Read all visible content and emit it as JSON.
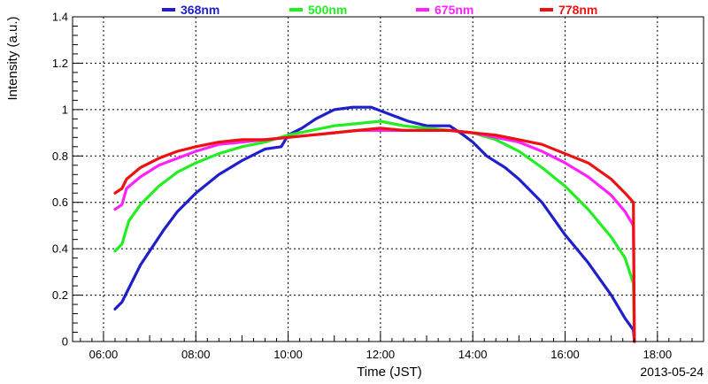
{
  "chart_data": {
    "type": "line",
    "xlabel": "Time (JST)",
    "ylabel": "Intensity (a.u.)",
    "date_label": "2013-05-24",
    "xlim": [
      5.33,
      19.0
    ],
    "ylim": [
      0,
      1.4
    ],
    "x_ticks": [
      {
        "value": 6,
        "label": "06:00"
      },
      {
        "value": 8,
        "label": "08:00"
      },
      {
        "value": 10,
        "label": "10:00"
      },
      {
        "value": 12,
        "label": "12:00"
      },
      {
        "value": 14,
        "label": "14:00"
      },
      {
        "value": 16,
        "label": "16:00"
      },
      {
        "value": 18,
        "label": "18:00"
      }
    ],
    "y_ticks": [
      {
        "value": 0,
        "label": "0"
      },
      {
        "value": 0.2,
        "label": "0.2"
      },
      {
        "value": 0.4,
        "label": "0.4"
      },
      {
        "value": 0.6,
        "label": "0.6"
      },
      {
        "value": 0.8,
        "label": "0.8"
      },
      {
        "value": 1.0,
        "label": "1"
      },
      {
        "value": 1.2,
        "label": "1.2"
      },
      {
        "value": 1.4,
        "label": "1.4"
      }
    ],
    "grid": true,
    "legend_position": "top",
    "series": [
      {
        "name": "368nm",
        "color": "#1f1fcc",
        "points": [
          [
            6.25,
            0.14
          ],
          [
            6.4,
            0.17
          ],
          [
            6.6,
            0.25
          ],
          [
            6.8,
            0.33
          ],
          [
            7.0,
            0.39
          ],
          [
            7.3,
            0.48
          ],
          [
            7.6,
            0.56
          ],
          [
            8.0,
            0.64
          ],
          [
            8.5,
            0.72
          ],
          [
            9.0,
            0.78
          ],
          [
            9.5,
            0.83
          ],
          [
            9.85,
            0.84
          ],
          [
            10.0,
            0.89
          ],
          [
            10.3,
            0.92
          ],
          [
            10.6,
            0.96
          ],
          [
            11.0,
            1.0
          ],
          [
            11.4,
            1.01
          ],
          [
            11.8,
            1.01
          ],
          [
            12.2,
            0.98
          ],
          [
            12.6,
            0.95
          ],
          [
            13.0,
            0.93
          ],
          [
            13.5,
            0.93
          ],
          [
            13.8,
            0.89
          ],
          [
            14.0,
            0.86
          ],
          [
            14.3,
            0.8
          ],
          [
            14.7,
            0.75
          ],
          [
            15.0,
            0.7
          ],
          [
            15.5,
            0.6
          ],
          [
            16.0,
            0.46
          ],
          [
            16.5,
            0.34
          ],
          [
            17.0,
            0.2
          ],
          [
            17.3,
            0.1
          ],
          [
            17.48,
            0.05
          ],
          [
            17.5,
            0.0
          ]
        ]
      },
      {
        "name": "500nm",
        "color": "#22ee22",
        "points": [
          [
            6.25,
            0.39
          ],
          [
            6.4,
            0.42
          ],
          [
            6.55,
            0.52
          ],
          [
            6.8,
            0.59
          ],
          [
            7.2,
            0.67
          ],
          [
            7.6,
            0.73
          ],
          [
            8.0,
            0.77
          ],
          [
            8.5,
            0.81
          ],
          [
            9.0,
            0.84
          ],
          [
            9.5,
            0.86
          ],
          [
            10.0,
            0.89
          ],
          [
            10.5,
            0.91
          ],
          [
            11.0,
            0.93
          ],
          [
            11.5,
            0.94
          ],
          [
            12.0,
            0.95
          ],
          [
            12.5,
            0.93
          ],
          [
            13.0,
            0.92
          ],
          [
            13.5,
            0.91
          ],
          [
            14.0,
            0.9
          ],
          [
            14.5,
            0.87
          ],
          [
            15.0,
            0.82
          ],
          [
            15.5,
            0.75
          ],
          [
            16.0,
            0.67
          ],
          [
            16.5,
            0.57
          ],
          [
            17.0,
            0.45
          ],
          [
            17.3,
            0.36
          ],
          [
            17.48,
            0.25
          ],
          [
            17.5,
            0.0
          ]
        ]
      },
      {
        "name": "675nm",
        "color": "#ff22ff",
        "points": [
          [
            6.25,
            0.57
          ],
          [
            6.4,
            0.59
          ],
          [
            6.5,
            0.66
          ],
          [
            6.8,
            0.71
          ],
          [
            7.2,
            0.76
          ],
          [
            7.6,
            0.79
          ],
          [
            8.0,
            0.82
          ],
          [
            8.5,
            0.85
          ],
          [
            9.0,
            0.86
          ],
          [
            9.5,
            0.87
          ],
          [
            10.0,
            0.88
          ],
          [
            10.5,
            0.89
          ],
          [
            11.0,
            0.9
          ],
          [
            11.5,
            0.91
          ],
          [
            12.0,
            0.91
          ],
          [
            12.5,
            0.91
          ],
          [
            13.0,
            0.91
          ],
          [
            13.5,
            0.91
          ],
          [
            14.0,
            0.9
          ],
          [
            14.5,
            0.88
          ],
          [
            15.0,
            0.86
          ],
          [
            15.5,
            0.82
          ],
          [
            16.0,
            0.77
          ],
          [
            16.5,
            0.71
          ],
          [
            17.0,
            0.63
          ],
          [
            17.3,
            0.56
          ],
          [
            17.48,
            0.5
          ],
          [
            17.5,
            0.0
          ]
        ]
      },
      {
        "name": "778nm",
        "color": "#ee1111",
        "points": [
          [
            6.25,
            0.64
          ],
          [
            6.4,
            0.66
          ],
          [
            6.5,
            0.7
          ],
          [
            6.8,
            0.75
          ],
          [
            7.2,
            0.79
          ],
          [
            7.6,
            0.82
          ],
          [
            8.0,
            0.84
          ],
          [
            8.5,
            0.86
          ],
          [
            9.0,
            0.87
          ],
          [
            9.5,
            0.87
          ],
          [
            10.0,
            0.88
          ],
          [
            10.5,
            0.89
          ],
          [
            11.0,
            0.9
          ],
          [
            11.5,
            0.91
          ],
          [
            12.0,
            0.92
          ],
          [
            12.5,
            0.91
          ],
          [
            13.0,
            0.91
          ],
          [
            13.5,
            0.91
          ],
          [
            14.0,
            0.9
          ],
          [
            14.5,
            0.89
          ],
          [
            15.0,
            0.87
          ],
          [
            15.5,
            0.85
          ],
          [
            16.0,
            0.81
          ],
          [
            16.5,
            0.77
          ],
          [
            17.0,
            0.7
          ],
          [
            17.3,
            0.64
          ],
          [
            17.48,
            0.6
          ],
          [
            17.5,
            0.0
          ]
        ]
      }
    ]
  }
}
